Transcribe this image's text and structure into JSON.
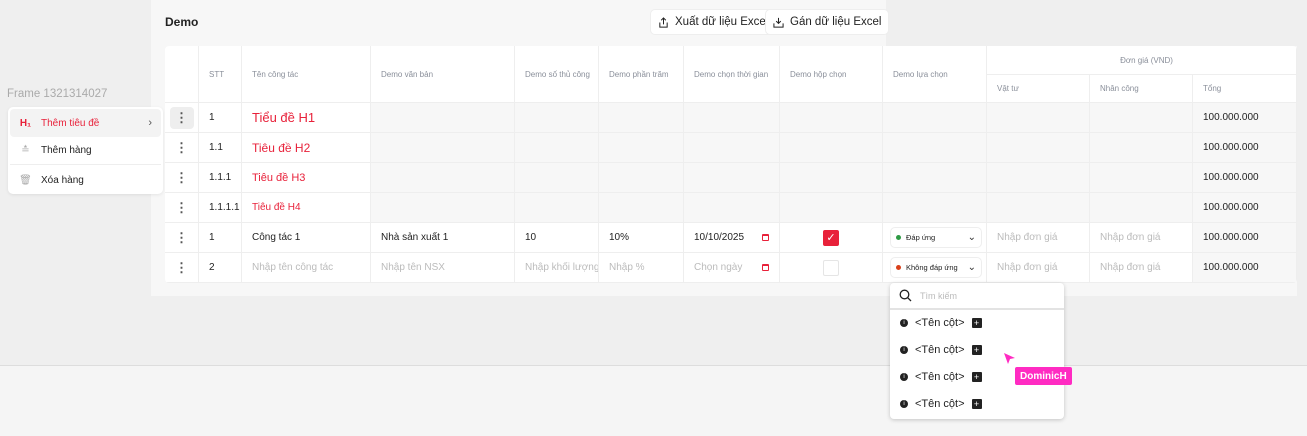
{
  "frame_label": "Frame 1321314027",
  "header": {
    "title": "Demo",
    "export_label": "Xuất dữ liệu Excel",
    "import_label": "Gán dữ liệu Excel"
  },
  "context_menu": {
    "items": [
      {
        "icon": "H₁",
        "label": "Thêm tiêu đề",
        "active": true
      },
      {
        "icon": "≛",
        "label": "Thêm hàng"
      },
      {
        "icon": "🗑",
        "label": "Xóa hàng"
      }
    ]
  },
  "table": {
    "columns": [
      "",
      "STT",
      "Tên công tác",
      "Demo văn bản",
      "Demo số thủ công",
      "Demo phần trăm",
      "Demo chọn thời gian",
      "Demo hộp chọn",
      "Demo lựa chọn"
    ],
    "group_header": "Đơn giá (VND)",
    "group_columns": [
      "Vật tư",
      "Nhân công",
      "Tổng"
    ],
    "rows": [
      {
        "stt": "1",
        "name": "Tiểu đề H1",
        "level": 1,
        "total": "100.000.000"
      },
      {
        "stt": "1.1",
        "name": "Tiêu đề H2",
        "level": 2,
        "total": "100.000.000"
      },
      {
        "stt": "1.1.1",
        "name": "Tiêu đề H3",
        "level": 3,
        "total": "100.000.000"
      },
      {
        "stt": "1.1.1.1",
        "name": "Tiêu đề H4",
        "level": 4,
        "total": "100.000.000"
      },
      {
        "stt": "1",
        "name": "Công tác 1",
        "text": "Nhà sản xuất 1",
        "number": "10",
        "percent": "10%",
        "date": "10/10/2025",
        "checked": true,
        "choice": "Đáp ứng",
        "choice_color": "#2e9a44",
        "material": "Nhập đơn giá",
        "labor": "Nhập đơn giá",
        "total": "100.000.000"
      },
      {
        "stt": "2",
        "name_placeholder": "Nhập tên công tác",
        "text_placeholder": "Nhập tên NSX",
        "number_placeholder": "Nhập khối lượng",
        "percent_placeholder": "Nhập %",
        "date_placeholder": "Chọn ngày",
        "checked": false,
        "choice": "Không đáp ứng",
        "choice_color": "#d9401a",
        "material": "Nhập đơn giá",
        "labor": "Nhập đơn giá",
        "total": "100.000.000"
      }
    ]
  },
  "dropdown": {
    "search_placeholder": "Tìm kiếm",
    "options": [
      "<Tên cột>",
      "<Tên cột>",
      "<Tên cột>",
      "<Tên cột>"
    ]
  },
  "cursor": {
    "user": "DominicH",
    "color": "#ff2bc2"
  },
  "colors": {
    "accent": "#e8213a"
  }
}
